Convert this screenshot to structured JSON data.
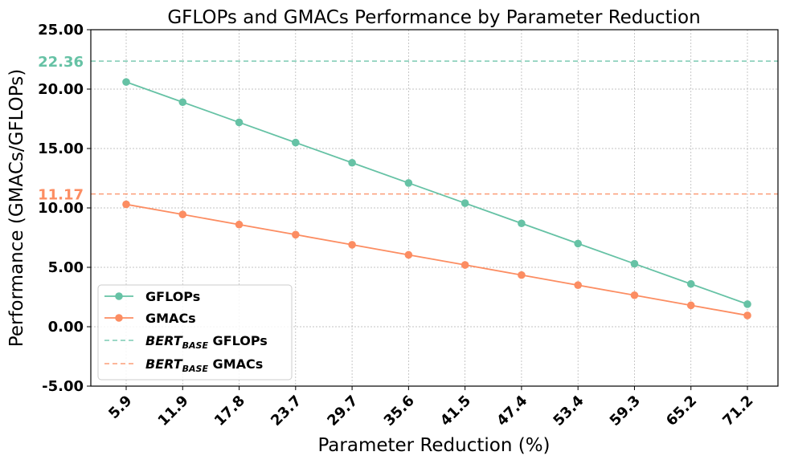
{
  "chart_data": {
    "type": "line",
    "title": "GFLOPs and GMACs Performance by Parameter Reduction",
    "xlabel": "Parameter Reduction (%)",
    "ylabel": "Performance (GMACs/GFLOPs)",
    "categories": [
      "5.9",
      "11.9",
      "17.8",
      "23.7",
      "29.7",
      "35.6",
      "41.5",
      "47.4",
      "53.4",
      "59.3",
      "65.2",
      "71.2"
    ],
    "ylim": [
      -5.0,
      25.0
    ],
    "yticks": [
      "-5.00",
      "0.00",
      "5.00",
      "10.00",
      "15.00",
      "20.00",
      "25.00"
    ],
    "grid": true,
    "legend_position": "lower-left",
    "series": [
      {
        "name": "GFLOPs",
        "color": "#66c2a5",
        "marker": "circle",
        "values": [
          20.6,
          18.9,
          17.2,
          15.5,
          13.8,
          12.1,
          10.4,
          8.7,
          7.0,
          5.3,
          3.6,
          1.9
        ]
      },
      {
        "name": "GMACs",
        "color": "#fc8d62",
        "marker": "circle",
        "values": [
          10.3,
          9.45,
          8.6,
          7.75,
          6.9,
          6.05,
          5.2,
          4.35,
          3.5,
          2.65,
          1.8,
          0.95
        ]
      }
    ],
    "reference_lines": [
      {
        "label": "22.36",
        "value": 22.36,
        "color": "#66c2a5",
        "style": "dashed",
        "legend_main": "BERT",
        "legend_sub": "BASE",
        "legend_suffix": " GFLOPs"
      },
      {
        "label": "11.17",
        "value": 11.17,
        "color": "#fc8d62",
        "style": "dashed",
        "legend_main": "BERT",
        "legend_sub": "BASE",
        "legend_suffix": " GMACs"
      }
    ]
  }
}
